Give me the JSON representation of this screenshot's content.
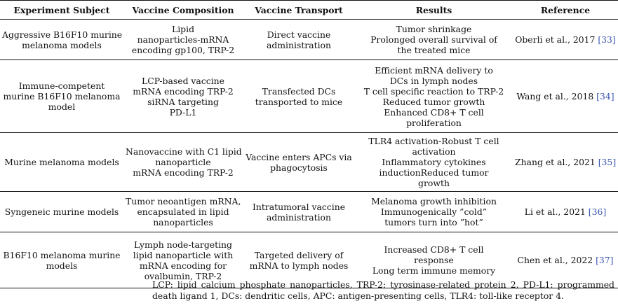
{
  "headers": [
    "Experiment Subject",
    "Vaccine Composition",
    "Vaccine Transport",
    "Results",
    "Reference"
  ],
  "rows": [
    {
      "subject": [
        "Aggressive B16F10 murine",
        "melanoma models"
      ],
      "composition": [
        "Lipid",
        "nanoparticles-mRNA",
        "encoding gp100, TRP-2"
      ],
      "transport": [
        "Direct vaccine",
        "administration"
      ],
      "results": [
        "Tumor shrinkage",
        "Prolonged overall survival of",
        "the treated mice"
      ],
      "ref_text": "Oberli et al., 2017 ",
      "ref_num": "[33]"
    },
    {
      "subject": [
        "Immune-competent",
        "murine B16F10 melanoma",
        "model"
      ],
      "composition": [
        "LCP-based vaccine",
        "mRNA encoding TRP-2",
        "siRNA targeting",
        "PD-L1"
      ],
      "transport": [
        "Transfected DCs",
        "transported to mice"
      ],
      "results": [
        "Efficient mRNA delivery to",
        "DCs in lymph nodes",
        "T cell specific reaction to TRP-2",
        "Reduced tumor growth",
        "Enhanced CD8+ T cell",
        "proliferation"
      ],
      "ref_text": "Wang et al., 2018 ",
      "ref_num": "[34]"
    },
    {
      "subject": [
        "Murine melanoma models"
      ],
      "composition": [
        "Nanovaccine with C1 lipid",
        "nanoparticle",
        "mRNA encoding TRP-2"
      ],
      "transport": [
        "Vaccine enters APCs via",
        "phagocytosis"
      ],
      "results": [
        "TLR4 activation-Robust T cell",
        "activation",
        "Inflammatory cytokines",
        "inductionReduced tumor",
        "growth"
      ],
      "ref_text": "Zhang et al., 2021 ",
      "ref_num": "[35]"
    },
    {
      "subject": [
        "Syngeneic murine models"
      ],
      "composition": [
        "Tumor neoantigen mRNA,",
        "encapsulated in lipid",
        "nanoparticles"
      ],
      "transport": [
        "Intratumoral vaccine",
        "administration"
      ],
      "results": [
        "Melanoma growth inhibition",
        "Immunogenically ”cold”",
        "tumors turn into ”hot”"
      ],
      "ref_text": "Li et al., 2021 ",
      "ref_num": "[36]"
    },
    {
      "subject": [
        "B16F10 melanoma murine",
        "models"
      ],
      "composition": [
        "Lymph node-targeting",
        "lipid nanoparticle with",
        "mRNA encoding for",
        "ovalbumin, TRP-2"
      ],
      "transport": [
        "Targeted delivery of",
        "mRNA to lymph nodes"
      ],
      "results": [
        "Increased CD8+ T cell",
        "response",
        "Long term immune memory"
      ],
      "ref_text": "Chen et al., 2022 ",
      "ref_num": "[37]"
    }
  ],
  "caption": "LCP: lipid calcium phosphate nanoparticles, TRP-2: tyrosinase-related protein 2, PD-L1: programmed death ligand 1, DCs: dendritic cells, APC: antigen-presenting cells, TLR4: toll-like receptor 4."
}
